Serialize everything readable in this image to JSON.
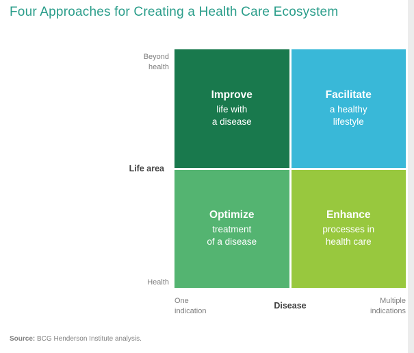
{
  "title": {
    "text": "Four Approaches for Creating a Health Care Ecosystem",
    "color": "#2a9d8a"
  },
  "matrix": {
    "y_axis": {
      "top_label": "Beyond\nhealth",
      "title": "Life area",
      "bottom_label": "Health"
    },
    "x_axis": {
      "left_label": "One\nindication",
      "title": "Disease",
      "right_label": "Multiple\nindications"
    },
    "quadrants": {
      "top_left": {
        "heading": "Improve",
        "body": "life with\na disease",
        "color": "#19794d"
      },
      "top_right": {
        "heading": "Facilitate",
        "body": "a healthy\nlifestyle",
        "color": "#39b8d8"
      },
      "bottom_left": {
        "heading": "Optimize",
        "body": "treatment\nof a disease",
        "color": "#54b471"
      },
      "bottom_right": {
        "heading": "Enhance",
        "body": "processes in\nhealth care",
        "color": "#98c83e"
      }
    }
  },
  "footer": {
    "source_label": "Source:",
    "source_text": " BCG Henderson Institute analysis."
  }
}
